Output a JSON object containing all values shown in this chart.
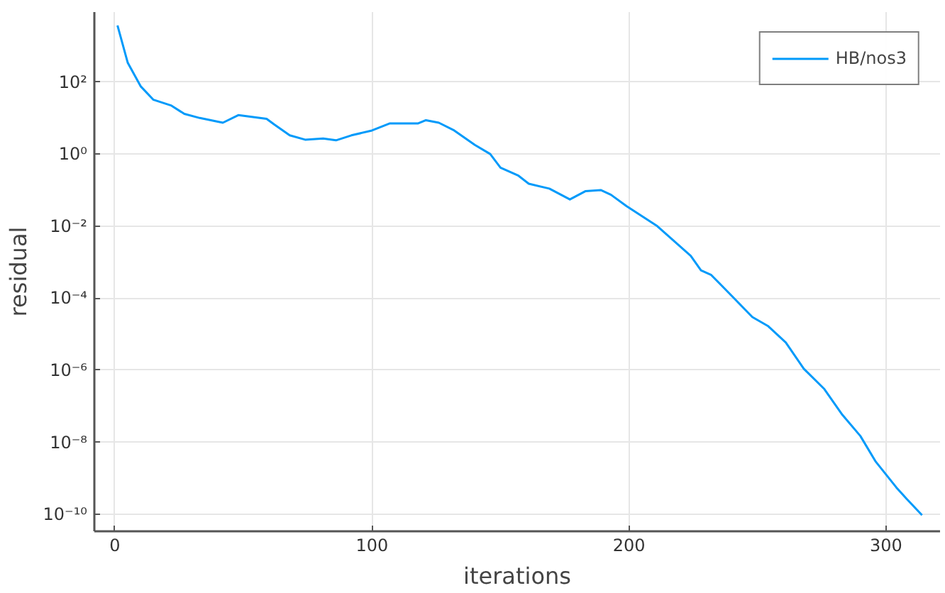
{
  "chart_data": {
    "type": "line",
    "xlabel": "iterations",
    "ylabel": "residual",
    "log": "y",
    "grid": true,
    "legend": "top right",
    "xlim": [
      -8,
      321
    ],
    "xticks": [
      0,
      100,
      200,
      300
    ],
    "ylim": [
      3.4e-11,
      8700
    ],
    "yticks": [
      {
        "value": 100,
        "label": "10²"
      },
      {
        "value": 1,
        "label": "10⁰"
      },
      {
        "value": 0.01,
        "label": "10⁻²"
      },
      {
        "value": 0.0001,
        "label": "10⁻⁴"
      },
      {
        "value": 1e-06,
        "label": "10⁻⁶"
      },
      {
        "value": 1e-08,
        "label": "10⁻⁸"
      },
      {
        "value": 1e-10,
        "label": "10⁻¹⁰"
      }
    ],
    "series": [
      {
        "name": "HB/nos3",
        "color": "#009afa",
        "x": [
          1,
          5,
          10,
          15,
          22,
          27,
          33,
          42,
          48,
          59,
          62,
          68,
          74,
          81,
          86,
          92,
          100,
          107,
          118,
          121,
          126,
          132,
          140,
          146,
          150,
          157,
          161,
          169,
          177,
          183,
          189,
          193,
          199,
          211,
          224,
          228,
          232,
          240,
          248,
          254,
          261,
          268,
          276,
          283,
          290,
          296,
          304,
          308,
          314
        ],
        "values": [
          3700,
          340,
          76,
          32,
          22,
          13,
          10,
          7.4,
          12,
          9.5,
          6.6,
          3.3,
          2.5,
          2.7,
          2.4,
          3.3,
          4.5,
          7.1,
          7.1,
          8.7,
          7.4,
          4.5,
          1.8,
          1.0,
          0.42,
          0.25,
          0.15,
          0.11,
          0.055,
          0.093,
          0.1,
          0.074,
          0.036,
          0.01,
          0.0015,
          0.00059,
          0.00044,
          0.000115,
          3e-05,
          1.7e-05,
          5.9e-06,
          1.1e-06,
          3e-07,
          5.8e-08,
          1.5e-08,
          2.9e-09,
          5.6e-10,
          2.7e-10,
          9.5e-11
        ]
      }
    ]
  }
}
